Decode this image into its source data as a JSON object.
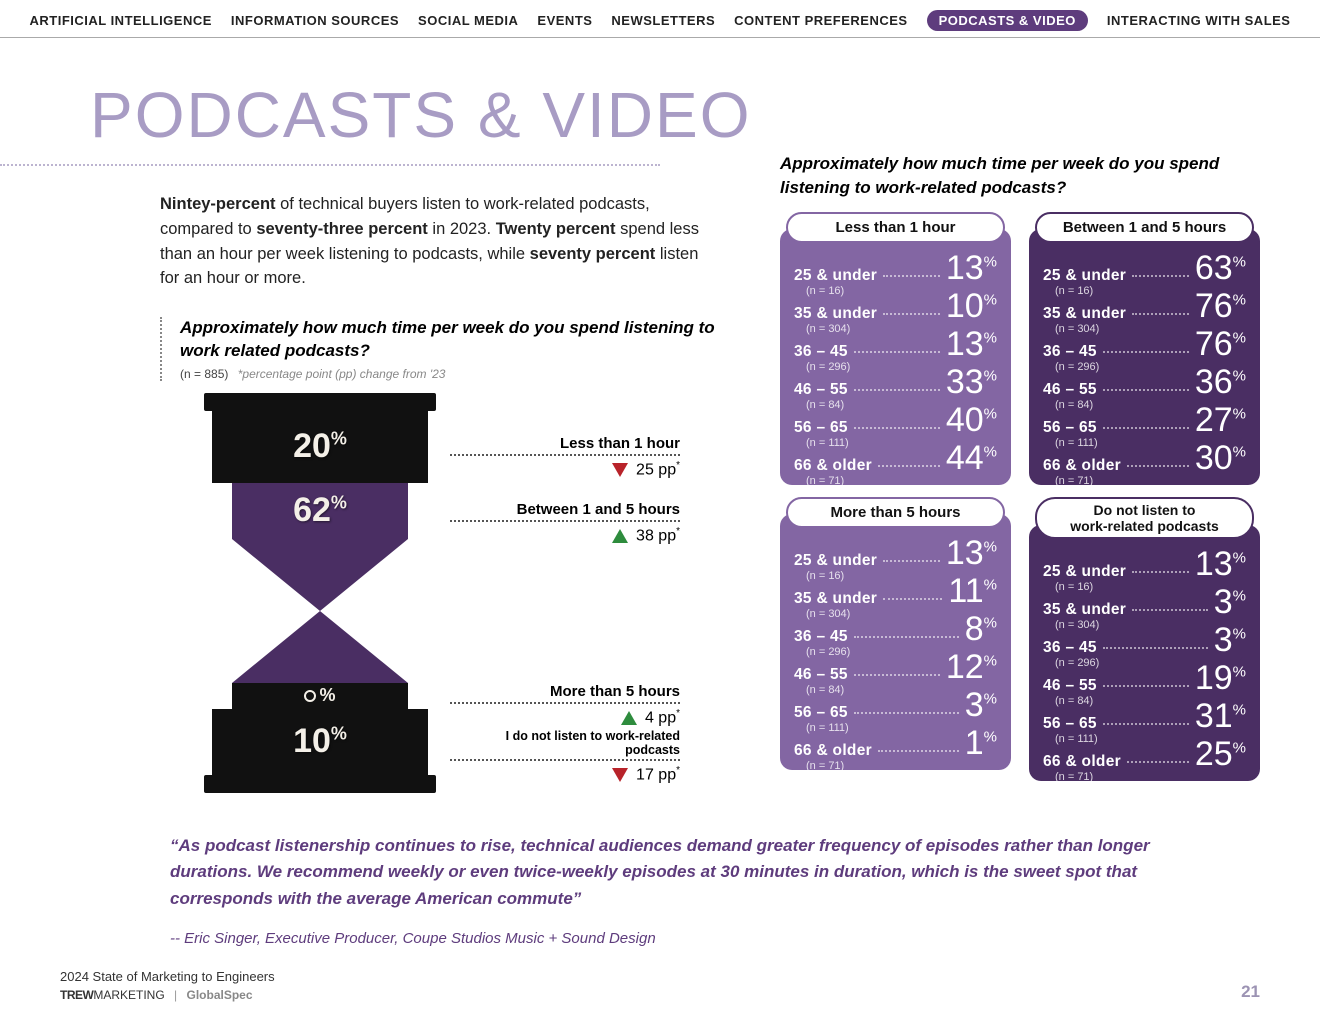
{
  "nav": {
    "items": [
      "ARTIFICIAL INTELLIGENCE",
      "INFORMATION SOURCES",
      "SOCIAL MEDIA",
      "EVENTS",
      "NEWSLETTERS",
      "CONTENT PREFERENCES",
      "PODCASTS & VIDEO",
      "INTERACTING WITH SALES"
    ],
    "active_index": 6
  },
  "page_title": "PODCASTS & VIDEO",
  "intro_html": "<b>Nintey-percent</b> of technical buyers listen to work-related podcasts, compared to <b>seventy-three percent</b> in 2023. <b>Twenty percent</b> spend less than an hour per week listening to podcasts, while <b>seventy percent</b> listen for an hour or more.",
  "sub_question": "Approximately how much time per week do you spend listening to work related podcasts?",
  "sub_question_n": "(n = 885)",
  "pp_note": "*percentage point (pp) change from '23",
  "right_question": "Approximately how much time per week do you spend listening to work-related podcasts?",
  "hourglass": {
    "segments": [
      {
        "label": "20",
        "suffix": "%"
      },
      {
        "label": "62",
        "suffix": "%"
      },
      {
        "label": "O",
        "suffix": "%"
      },
      {
        "label": "10",
        "suffix": "%"
      }
    ],
    "labels": [
      {
        "title": "Less than 1 hour",
        "dir": "down",
        "delta": "25 pp"
      },
      {
        "title": "Between 1 and 5 hours",
        "dir": "up",
        "delta": "38 pp"
      },
      {
        "title": "More than 5 hours",
        "dir": "up",
        "delta": "4 pp"
      },
      {
        "title": "I do not listen to work-related podcasts",
        "dir": "down",
        "delta": "17 pp",
        "small": true
      }
    ],
    "label_offsets": [
      42,
      108,
      290,
      336
    ]
  },
  "age_rows": [
    {
      "age": "25 & under",
      "n": "(n = 16)"
    },
    {
      "age": "35 & under",
      "n": "(n = 304)"
    },
    {
      "age": "36 – 45",
      "n": "(n = 296)"
    },
    {
      "age": "46 – 55",
      "n": "(n = 84)"
    },
    {
      "age": "56 – 65",
      "n": "(n = 111)"
    },
    {
      "age": "66 & older",
      "n": "(n = 71)"
    }
  ],
  "panels": [
    {
      "title": "Less than 1 hour",
      "tab_color": "#8366a3",
      "body_color": "#8366a3",
      "values": [
        "13",
        "10",
        "13",
        "33",
        "40",
        "44"
      ]
    },
    {
      "title": "Between 1 and 5 hours",
      "tab_color": "#4a2e63",
      "body_color": "#4a2e63",
      "values": [
        "63",
        "76",
        "76",
        "36",
        "27",
        "30"
      ]
    },
    {
      "title": "More than 5 hours",
      "tab_color": "#8366a3",
      "body_color": "#8366a3",
      "values": [
        "13",
        "11",
        "8",
        "12",
        "3",
        "1"
      ]
    },
    {
      "title": "Do not listen to\nwork-related podcasts",
      "tab_color": "#4a2e63",
      "body_color": "#4a2e63",
      "values": [
        "13",
        "3",
        "3",
        "19",
        "31",
        "25"
      ],
      "two_line": true
    }
  ],
  "quote": "“As podcast listenership continues to rise, technical audiences demand greater frequency of episodes rather than longer durations. We recommend weekly or even twice-weekly episodes at 30 minutes in duration, which is the sweet spot that corresponds with the average American commute”",
  "quote_attr": "-- Eric Singer, Executive Producer, Coupe Studios Music + Sound Design",
  "footer": {
    "report": "2024 State of Marketing to Engineers",
    "brand1a": "TREW",
    "brand1b": "MARKETING",
    "brand2": "GlobalSpec",
    "page": "21"
  },
  "colors": {
    "nav_active_bg": "#5e3c7d",
    "title": "#a89cc4",
    "quote": "#5e3c7d",
    "up": "#2e8c3d",
    "down": "#b8232a"
  }
}
